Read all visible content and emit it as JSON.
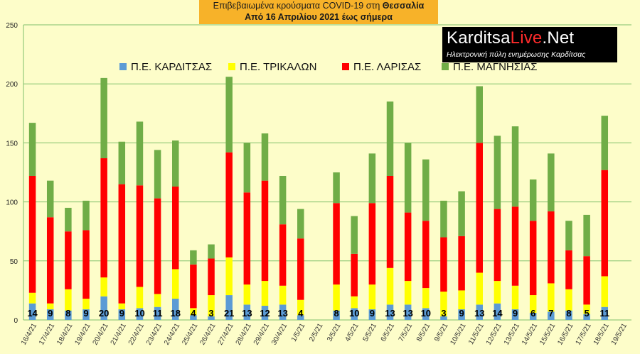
{
  "header": {
    "line1_prefix": "Επιβεβαιωμένα κρούσματα COVID-19 στη ",
    "line1_region": "Θεσσαλία",
    "line2": "Από 16 Απριλίου 2021 έως σήμερα"
  },
  "logo": {
    "brand_part1": "Karditsa",
    "brand_part2": "Live",
    "brand_part3": ".Net",
    "tagline": "Ηλεκτρονική πύλη ενημέρωσης Καρδίτσας"
  },
  "colors": {
    "background": "#fdfdc9",
    "karditsa": "#5b9bd5",
    "trikala": "#ffff00",
    "larisa": "#ff0000",
    "magnisia": "#70ad47",
    "gridline": "#7fbf6a"
  },
  "chart_data": {
    "type": "bar",
    "stacked": true,
    "ylim": [
      0,
      250
    ],
    "yticks": [
      0,
      50,
      100,
      150,
      200,
      250
    ],
    "grid": true,
    "legend_position": "top-left",
    "categories": [
      "16/4/21",
      "17/4/21",
      "18/4/21",
      "19/4/21",
      "20/4/21",
      "21/4/21",
      "22/4/21",
      "23/4/21",
      "24/4/21",
      "25/4/21",
      "26/4/21",
      "27/4/21",
      "28/4/21",
      "29/4/21",
      "30/4/21",
      "1/5/21",
      "2/5/21",
      "3/5/21",
      "4/5/21",
      "5/5/21",
      "6/5/21",
      "7/5/21",
      "8/5/21",
      "9/5/21",
      "10/5/21",
      "11/5/21",
      "12/5/21",
      "13/5/21",
      "14/5/21",
      "15/5/21",
      "16/5/21",
      "17/5/21",
      "18/5/21",
      "19/5/21"
    ],
    "series": [
      {
        "name": "Π.Ε. ΚΑΡΔΙΤΣΑΣ",
        "values": [
          14,
          9,
          8,
          9,
          20,
          9,
          10,
          11,
          18,
          4,
          3,
          21,
          13,
          12,
          13,
          4,
          0,
          8,
          10,
          9,
          13,
          13,
          10,
          3,
          9,
          13,
          14,
          9,
          6,
          7,
          8,
          5,
          11,
          0
        ]
      },
      {
        "name": "Π.Ε. ΤΡΙΚΑΛΩΝ",
        "values": [
          9,
          5,
          18,
          9,
          16,
          5,
          18,
          11,
          25,
          6,
          18,
          32,
          17,
          21,
          16,
          13,
          0,
          22,
          10,
          21,
          31,
          20,
          17,
          21,
          16,
          27,
          19,
          20,
          15,
          24,
          18,
          8,
          26,
          0
        ]
      },
      {
        "name": "Π.Ε. ΛΑΡΙΣΑΣ",
        "values": [
          99,
          73,
          49,
          58,
          101,
          101,
          86,
          81,
          70,
          37,
          31,
          89,
          78,
          85,
          52,
          52,
          0,
          69,
          36,
          69,
          78,
          58,
          57,
          46,
          46,
          110,
          61,
          67,
          63,
          61,
          33,
          41,
          90,
          0
        ]
      },
      {
        "name": "Π.Ε. ΜΑΓΝΗΣΙΑΣ",
        "values": [
          45,
          31,
          20,
          25,
          68,
          36,
          54,
          41,
          39,
          12,
          12,
          64,
          42,
          40,
          41,
          25,
          0,
          26,
          32,
          42,
          63,
          59,
          52,
          31,
          38,
          48,
          62,
          68,
          35,
          49,
          25,
          35,
          46,
          0
        ]
      }
    ],
    "data_labels": [
      14,
      9,
      8,
      9,
      20,
      9,
      10,
      11,
      18,
      4,
      3,
      21,
      13,
      12,
      13,
      4,
      null,
      8,
      10,
      9,
      13,
      13,
      10,
      3,
      9,
      13,
      14,
      9,
      6,
      7,
      8,
      5,
      11,
      null
    ]
  }
}
